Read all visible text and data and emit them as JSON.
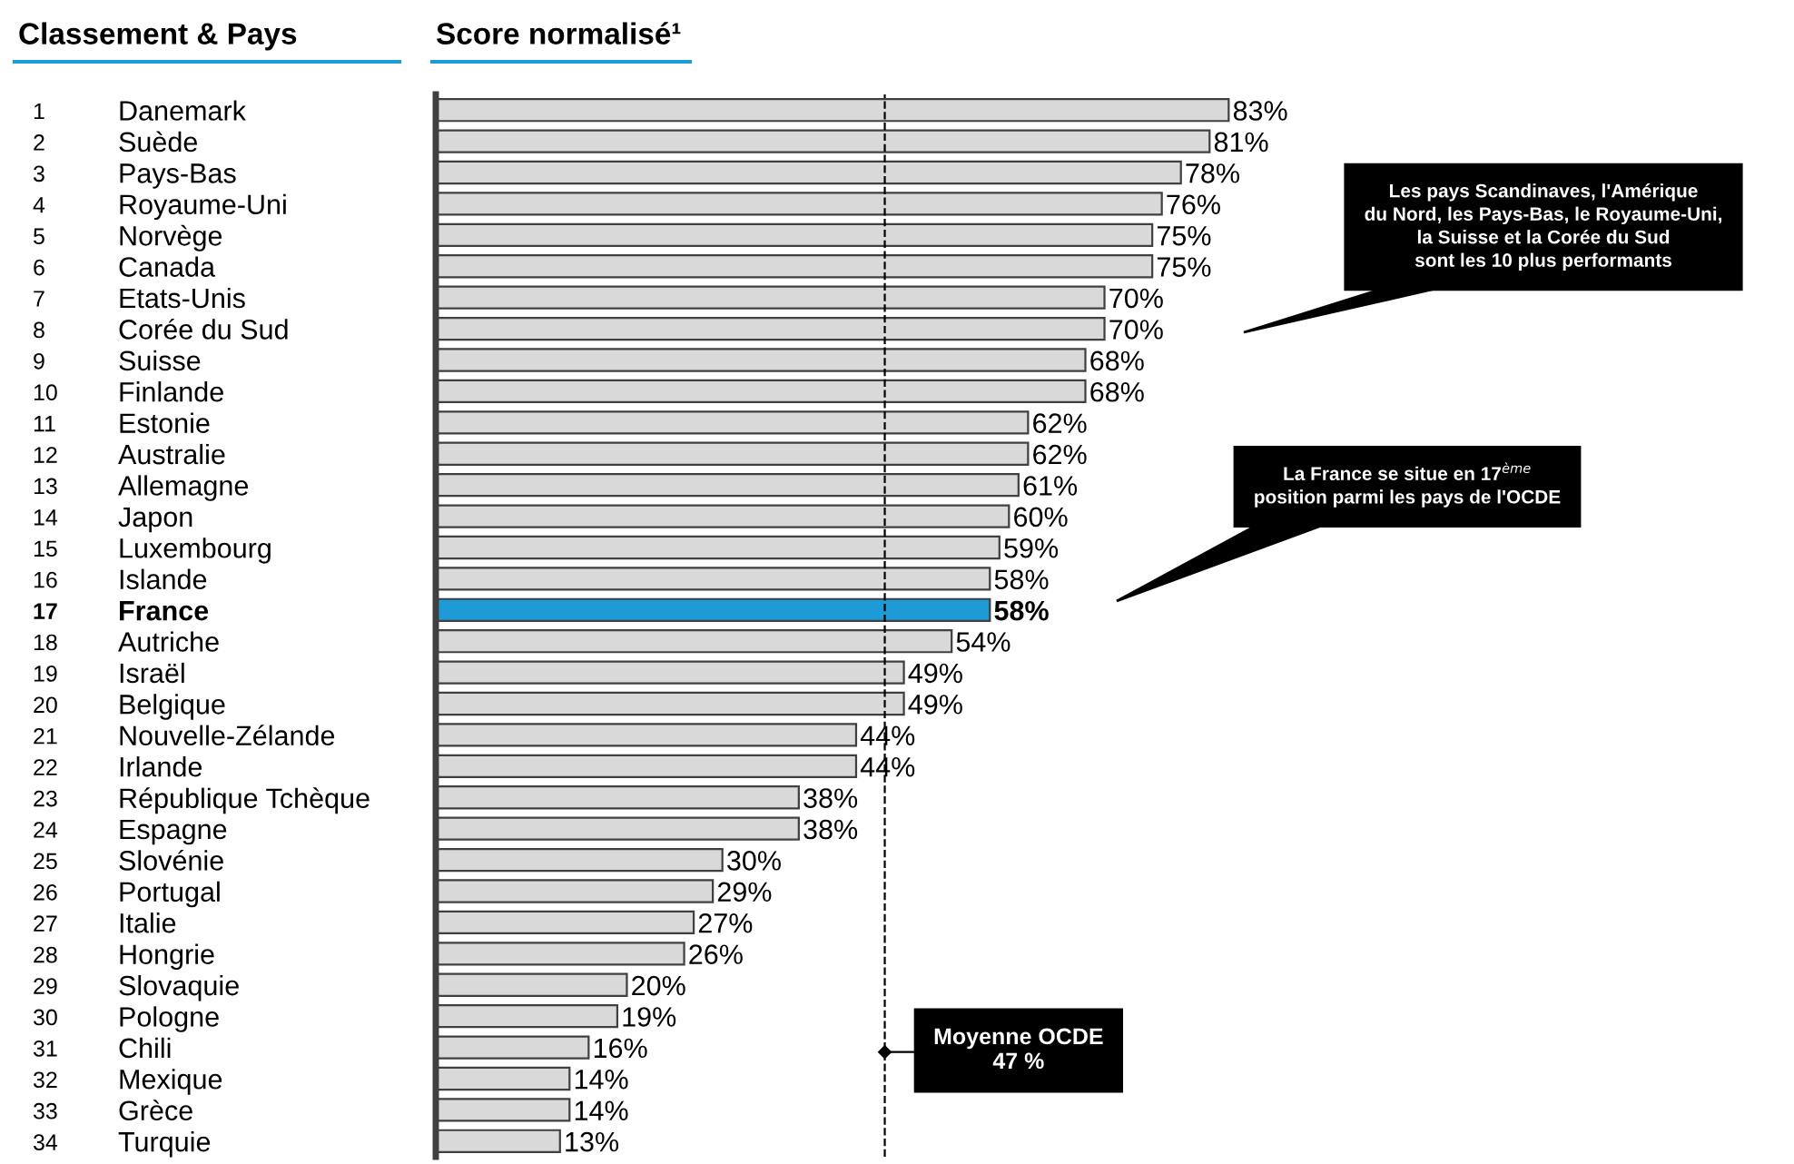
{
  "chart_data": {
    "type": "bar",
    "orientation": "horizontal",
    "title": "Score normalisé¹",
    "ylabel": "Classement & Pays",
    "categories": [
      "1 Danemark",
      "2 Suède",
      "3 Pays-Bas",
      "4 Royaume-Uni",
      "5 Norvège",
      "6 Canada",
      "7 Etats-Unis",
      "8 Corée du Sud",
      "9 Suisse",
      "10 Finlande",
      "11 Estonie",
      "12 Australie",
      "13 Allemagne",
      "14 Japon",
      "15 Luxembourg",
      "16 Islande",
      "17 France",
      "18 Autriche",
      "19 Israël",
      "20 Belgique",
      "21 Nouvelle-Zélande",
      "22 Irlande",
      "23 République Tchèque",
      "24 Espagne",
      "25 Slovénie",
      "26 Portugal",
      "27 Italie",
      "28 Hongrie",
      "29 Slovaquie",
      "30 Pologne",
      "31 Chili",
      "32 Mexique",
      "33 Grèce",
      "34 Turquie"
    ],
    "values": [
      83,
      81,
      78,
      76,
      75,
      75,
      70,
      70,
      68,
      68,
      62,
      62,
      61,
      60,
      59,
      58,
      58,
      54,
      49,
      49,
      44,
      44,
      38,
      38,
      30,
      29,
      27,
      26,
      20,
      19,
      16,
      14,
      14,
      13
    ],
    "value_labels": [
      "83%",
      "81%",
      "78%",
      "76%",
      "75%",
      "75%",
      "70%",
      "70%",
      "68%",
      "68%",
      "62%",
      "62%",
      "61%",
      "60%",
      "59%",
      "58%",
      "58%",
      "54%",
      "49%",
      "49%",
      "44%",
      "44%",
      "38%",
      "38%",
      "30%",
      "29%",
      "27%",
      "26%",
      "20%",
      "19%",
      "16%",
      "14%",
      "14%",
      "13%"
    ],
    "colors": [
      "#d9d9d9",
      "#d9d9d9",
      "#d9d9d9",
      "#d9d9d9",
      "#d9d9d9",
      "#d9d9d9",
      "#d9d9d9",
      "#d9d9d9",
      "#d9d9d9",
      "#d9d9d9",
      "#d9d9d9",
      "#d9d9d9",
      "#d9d9d9",
      "#d9d9d9",
      "#d9d9d9",
      "#d9d9d9",
      "#1e9bd7",
      "#d9d9d9",
      "#d9d9d9",
      "#d9d9d9",
      "#d9d9d9",
      "#d9d9d9",
      "#d9d9d9",
      "#d9d9d9",
      "#d9d9d9",
      "#d9d9d9",
      "#d9d9d9",
      "#d9d9d9",
      "#d9d9d9",
      "#d9d9d9",
      "#d9d9d9",
      "#d9d9d9",
      "#d9d9d9",
      "#d9d9d9"
    ],
    "ref_lines": [
      {
        "axis": "x",
        "value": 47,
        "label": "Moyenne OCDE\n47 %",
        "line_style": "dashed",
        "color": "#000000"
      }
    ],
    "annotations": [
      "Les pays Scandinaves, l'Amérique\ndu Nord, les Pays-Bas, le Royaume-Uni,\nla Suisse et la Corée du Sud\nsont les 10 plus performants",
      "La France se situe en 17$^{ème}$\nposition parmi les pays de l'OCDE"
    ]
  }
}
